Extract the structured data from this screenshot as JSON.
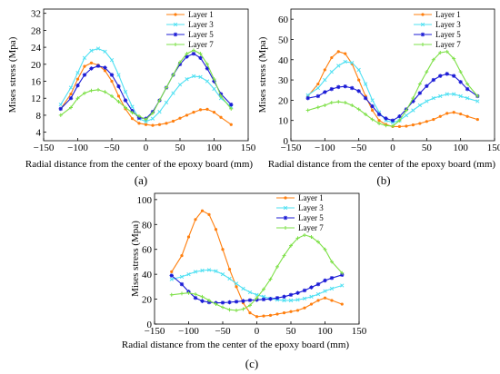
{
  "chart_data": [
    {
      "type": "line",
      "panel_label": "(a)",
      "xlabel": "Radial distance from the center of the epoxy board (mm)",
      "ylabel": "Mises stress (Mpa)",
      "xlim": [
        -150,
        150
      ],
      "ylim": [
        2,
        33
      ],
      "xticks": [
        -150,
        -100,
        -50,
        0,
        50,
        100,
        150
      ],
      "yticks": [
        4,
        8,
        12,
        16,
        20,
        24,
        28,
        32
      ],
      "grid": false,
      "legend_position": "top-right",
      "x": [
        -125,
        -110,
        -100,
        -90,
        -80,
        -70,
        -60,
        -50,
        -40,
        -30,
        -20,
        -10,
        0,
        10,
        20,
        30,
        40,
        50,
        60,
        70,
        80,
        90,
        100,
        110,
        125
      ],
      "series": [
        {
          "name": "Layer 1",
          "color": "#ff7f0e",
          "marker": "dot",
          "values": [
            9.5,
            13,
            16.5,
            19.5,
            20.3,
            19.8,
            18.5,
            16,
            12.5,
            9.5,
            7.2,
            6.1,
            5.8,
            5.6,
            5.8,
            6.1,
            6.6,
            7.3,
            8.0,
            8.7,
            9.3,
            9.4,
            8.7,
            7.5,
            5.8
          ]
        },
        {
          "name": "Layer 3",
          "color": "#4fe0f2",
          "marker": "x",
          "values": [
            10.5,
            14.5,
            18,
            21.5,
            23.2,
            23.7,
            23,
            21,
            17.5,
            13.5,
            10,
            7.2,
            6.5,
            7.2,
            8.8,
            11,
            13.2,
            15.2,
            16.5,
            17.2,
            17,
            16,
            14.2,
            12,
            10
          ]
        },
        {
          "name": "Layer 5",
          "color": "#1b1bd6",
          "marker": "star",
          "values": [
            9.5,
            12,
            15,
            17.5,
            19,
            19.6,
            19.2,
            17.5,
            14.8,
            11.5,
            9.0,
            7.4,
            7.2,
            8.8,
            11.5,
            14.5,
            17.5,
            20,
            21.8,
            22.5,
            21.5,
            19,
            16,
            13,
            10.5
          ]
        },
        {
          "name": "Layer 7",
          "color": "#7ee048",
          "marker": "cross",
          "values": [
            8,
            9.8,
            12,
            13.2,
            13.8,
            14,
            13.5,
            12.5,
            11.2,
            9.8,
            8.6,
            7.8,
            7.0,
            8.5,
            11.5,
            14.5,
            17.5,
            20.5,
            22.5,
            23.3,
            22.5,
            20,
            16.5,
            12.5,
            9.5
          ]
        }
      ]
    },
    {
      "type": "line",
      "panel_label": "(b)",
      "xlabel": "Radial distance from the center of the epoxy board (mm)",
      "ylabel": "Mises stress (Mpa)",
      "xlim": [
        -150,
        150
      ],
      "ylim": [
        0,
        65
      ],
      "xticks": [
        -150,
        -100,
        -50,
        0,
        50,
        100,
        150
      ],
      "yticks": [
        0,
        10,
        20,
        30,
        40,
        50,
        60
      ],
      "grid": false,
      "legend_position": "top-right",
      "x": [
        -125,
        -110,
        -100,
        -90,
        -80,
        -70,
        -60,
        -50,
        -40,
        -30,
        -20,
        -10,
        0,
        10,
        20,
        30,
        40,
        50,
        60,
        70,
        80,
        90,
        100,
        110,
        125
      ],
      "series": [
        {
          "name": "Layer 1",
          "color": "#ff7f0e",
          "marker": "dot",
          "values": [
            22,
            28,
            35,
            41,
            44,
            43,
            38,
            30,
            22,
            15,
            10,
            8,
            7,
            7,
            7.2,
            7.8,
            8.5,
            9.5,
            10.5,
            12,
            13.5,
            14,
            13.2,
            12,
            10.5
          ]
        },
        {
          "name": "Layer 3",
          "color": "#4fe0f2",
          "marker": "x",
          "values": [
            22.5,
            26,
            30,
            34,
            37,
            39,
            38.5,
            35,
            28,
            20,
            14,
            10,
            9,
            10,
            12.5,
            15,
            17.5,
            19.5,
            21,
            22,
            23,
            23,
            22,
            21,
            19.5
          ]
        },
        {
          "name": "Layer 5",
          "color": "#1b1bd6",
          "marker": "star",
          "values": [
            21,
            22,
            24,
            25.5,
            26.5,
            26.8,
            26,
            24.5,
            21,
            17,
            13,
            11,
            10,
            12,
            15.5,
            19.5,
            23.5,
            27,
            30,
            32,
            33,
            32,
            29,
            25.5,
            22
          ]
        },
        {
          "name": "Layer 7",
          "color": "#7ee048",
          "marker": "cross",
          "values": [
            15,
            16.5,
            17.5,
            18.8,
            19.2,
            18.8,
            17.5,
            15.5,
            13,
            10.5,
            8.5,
            7.5,
            7.2,
            10,
            15,
            21,
            28,
            34,
            40,
            43.5,
            44,
            40.5,
            34,
            28,
            22
          ]
        }
      ]
    },
    {
      "type": "line",
      "panel_label": "(c)",
      "xlabel": "Radial distance from the center of the epoxy board (mm)",
      "ylabel": "Mises stress (Mpa)",
      "xlim": [
        -150,
        150
      ],
      "ylim": [
        0,
        105
      ],
      "xticks": [
        -150,
        -100,
        -50,
        0,
        50,
        100,
        150
      ],
      "yticks": [
        0,
        20,
        40,
        60,
        80,
        100
      ],
      "grid": false,
      "legend_position": "top-right",
      "x": [
        -125,
        -110,
        -100,
        -90,
        -80,
        -70,
        -60,
        -50,
        -40,
        -30,
        -20,
        -10,
        0,
        10,
        20,
        30,
        40,
        50,
        60,
        70,
        80,
        90,
        100,
        110,
        125
      ],
      "series": [
        {
          "name": "Layer 1",
          "color": "#ff7f0e",
          "marker": "dot",
          "values": [
            42,
            55,
            70,
            84,
            91,
            88,
            76,
            60,
            44,
            30,
            17,
            9,
            6,
            6.5,
            7,
            8,
            9,
            10,
            11,
            13,
            16,
            19,
            21,
            19,
            16
          ]
        },
        {
          "name": "Layer 3",
          "color": "#4fe0f2",
          "marker": "x",
          "values": [
            36,
            38,
            40,
            42,
            43,
            43.5,
            42.5,
            40,
            36.5,
            32.5,
            28.5,
            25.5,
            23.5,
            22,
            20.5,
            19.5,
            19,
            19,
            19.5,
            20.5,
            22,
            24,
            26.5,
            28.5,
            31
          ]
        },
        {
          "name": "Layer 5",
          "color": "#1b1bd6",
          "marker": "star",
          "values": [
            39,
            32,
            26,
            21,
            18.5,
            17.5,
            17,
            17.2,
            17.5,
            18,
            18.5,
            19.2,
            19.5,
            19.8,
            20.2,
            21,
            22,
            23.5,
            25,
            27,
            29.5,
            32,
            35,
            37,
            39.5
          ]
        },
        {
          "name": "Layer 7",
          "color": "#7ee048",
          "marker": "cross",
          "values": [
            23.5,
            24.5,
            25,
            24,
            22,
            19,
            16,
            13.5,
            11.5,
            11,
            12,
            15,
            21,
            28,
            36,
            46,
            55,
            63,
            69,
            71.5,
            70,
            66,
            60,
            50,
            41
          ]
        }
      ]
    }
  ]
}
